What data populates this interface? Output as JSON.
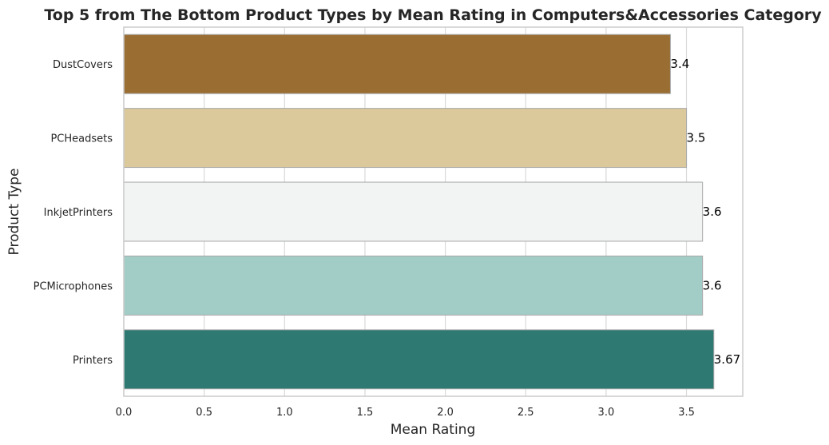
{
  "chart_data": {
    "type": "bar",
    "orientation": "horizontal",
    "title": "Top 5 from The Bottom Product Types by Mean Rating in Computers&Accessories Category",
    "xlabel": "Mean Rating",
    "ylabel": "Product Type",
    "categories": [
      "DustCovers",
      "PCHeadsets",
      "InkjetPrinters",
      "PCMicrophones",
      "Printers"
    ],
    "values": [
      3.4,
      3.5,
      3.6,
      3.6,
      3.67
    ],
    "data_labels": [
      "3.4",
      "3.5",
      "3.6",
      "3.6",
      "3.67"
    ],
    "bar_colors": [
      "#9a6e33",
      "#dbc99c",
      "#f2f4f3",
      "#a1cdc6",
      "#2e7a72"
    ],
    "xlim": [
      0,
      3.85
    ],
    "x_ticks": [
      0,
      0.5,
      1,
      1.5,
      2,
      2.5,
      3,
      3.5
    ],
    "x_tick_labels": [
      "0.0",
      "0.5",
      "1.0",
      "1.5",
      "2.0",
      "2.5",
      "3.0",
      "3.5"
    ],
    "grid": true,
    "legend": "none"
  }
}
